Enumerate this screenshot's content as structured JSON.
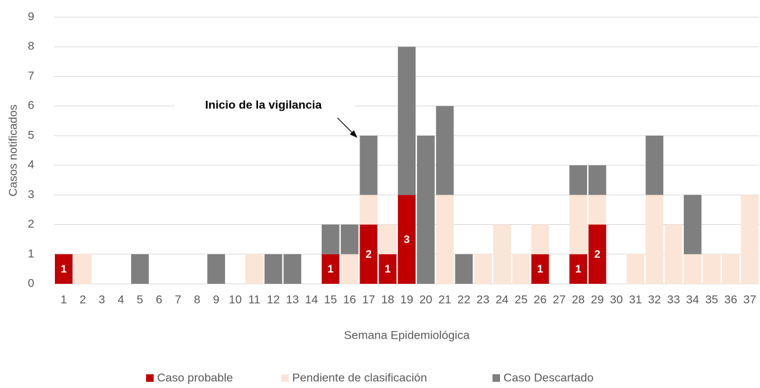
{
  "chart_data": {
    "type": "stacked_bar",
    "annotation": "Inicio de la vigilancia",
    "x_label": "Semana Epidemiológica",
    "y_label": "Casos notificados",
    "categories": [
      "1",
      "2",
      "3",
      "4",
      "5",
      "6",
      "7",
      "8",
      "9",
      "10",
      "11",
      "12",
      "13",
      "14",
      "15",
      "16",
      "17",
      "18",
      "19",
      "20",
      "21",
      "22",
      "23",
      "24",
      "25",
      "26",
      "27",
      "28",
      "29",
      "30",
      "31",
      "32",
      "33",
      "34",
      "35",
      "36",
      "37"
    ],
    "series": [
      {
        "name": "Caso probable",
        "color": "#c00000",
        "values": [
          1,
          0,
          0,
          0,
          0,
          0,
          0,
          0,
          0,
          0,
          0,
          0,
          0,
          0,
          1,
          0,
          2,
          1,
          3,
          0,
          0,
          0,
          0,
          0,
          0,
          1,
          0,
          1,
          2,
          0,
          0,
          0,
          0,
          0,
          0,
          0,
          0
        ]
      },
      {
        "name": "Pendiente de clasificación",
        "color": "#fbe5d6",
        "values": [
          0,
          1,
          0,
          0,
          0,
          0,
          0,
          0,
          0,
          0,
          1,
          0,
          0,
          0,
          0,
          1,
          1,
          1,
          0,
          0,
          3,
          0,
          1,
          2,
          1,
          1,
          0,
          2,
          1,
          0,
          1,
          3,
          2,
          1,
          1,
          1,
          3
        ]
      },
      {
        "name": "Caso Descartado",
        "color": "#7f7f7f",
        "values": [
          0,
          0,
          0,
          0,
          1,
          0,
          0,
          0,
          1,
          0,
          0,
          1,
          1,
          0,
          1,
          1,
          2,
          0,
          5,
          5,
          3,
          1,
          0,
          0,
          0,
          0,
          0,
          1,
          1,
          0,
          0,
          2,
          0,
          2,
          0,
          0,
          0
        ]
      }
    ],
    "ylim": [
      0,
      9
    ],
    "yticks": [
      0,
      1,
      2,
      3,
      4,
      5,
      6,
      7,
      8,
      9
    ],
    "grid": true,
    "legend": "bottom"
  }
}
